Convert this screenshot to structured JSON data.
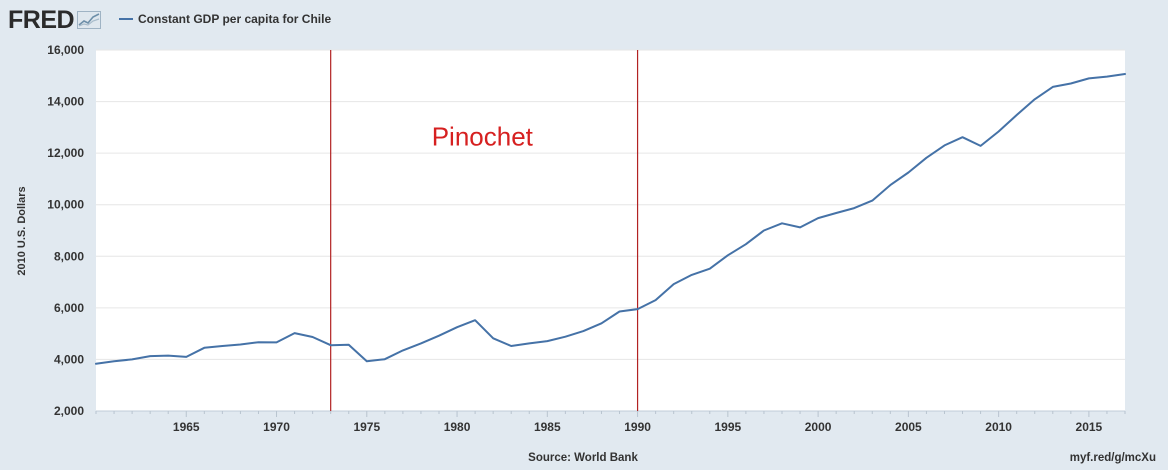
{
  "header": {
    "brand": "FRED",
    "brand_icon": "trend-line-icon",
    "legend_label": "Constant GDP per capita for Chile"
  },
  "footer": {
    "source": "Source: World Bank",
    "shortlink": "myf.red/g/mcXu"
  },
  "colors": {
    "series": "#4572a7",
    "marker_lines": "#b22222",
    "annotation": "#d62020",
    "plot_background": "#ffffff",
    "page_background": "#e1e9f0",
    "grid": "#e6e6e6"
  },
  "chart_data": {
    "type": "line",
    "title": "",
    "xlabel": "",
    "ylabel": "2010 U.S. Dollars",
    "xlim": [
      1960,
      2017
    ],
    "ylim": [
      2000,
      16000
    ],
    "x_ticks": [
      1965,
      1970,
      1975,
      1980,
      1985,
      1990,
      1995,
      2000,
      2005,
      2010,
      2015
    ],
    "y_ticks": [
      2000,
      4000,
      6000,
      8000,
      10000,
      12000,
      14000,
      16000
    ],
    "y_tick_labels": [
      "2,000",
      "4,000",
      "6,000",
      "8,000",
      "10,000",
      "12,000",
      "14,000",
      "16,000"
    ],
    "grid": "horizontal",
    "series": [
      {
        "name": "Constant GDP per capita for Chile",
        "x": [
          1960,
          1961,
          1962,
          1963,
          1964,
          1965,
          1966,
          1967,
          1968,
          1969,
          1970,
          1971,
          1972,
          1973,
          1974,
          1975,
          1976,
          1977,
          1978,
          1979,
          1980,
          1981,
          1982,
          1983,
          1984,
          1985,
          1986,
          1987,
          1988,
          1989,
          1990,
          1991,
          1992,
          1993,
          1994,
          1995,
          1996,
          1997,
          1998,
          1999,
          2000,
          2001,
          2002,
          2003,
          2004,
          2005,
          2006,
          2007,
          2008,
          2009,
          2010,
          2011,
          2012,
          2013,
          2014,
          2015,
          2016,
          2017
        ],
        "values": [
          3830,
          3930,
          4000,
          4130,
          4150,
          4100,
          4450,
          4520,
          4580,
          4670,
          4660,
          5020,
          4870,
          4550,
          4570,
          3930,
          4010,
          4350,
          4620,
          4920,
          5250,
          5520,
          4820,
          4520,
          4620,
          4710,
          4880,
          5100,
          5400,
          5860,
          5950,
          6300,
          6920,
          7280,
          7520,
          8040,
          8470,
          9000,
          9280,
          9120,
          9480,
          9680,
          9870,
          10160,
          10760,
          11250,
          11820,
          12300,
          12620,
          12280,
          12840,
          13480,
          14090,
          14570,
          14700,
          14900,
          14970,
          15070
        ]
      }
    ],
    "vertical_markers": [
      1973,
      1990
    ],
    "annotations": [
      {
        "text": "Pinochet",
        "x": 1981.4,
        "y": 12300
      }
    ]
  }
}
